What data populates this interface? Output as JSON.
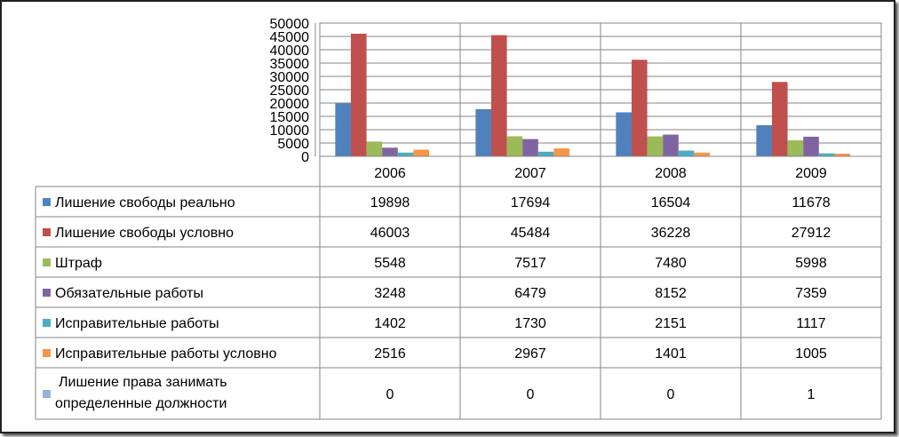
{
  "chart_data": {
    "type": "bar",
    "title": "",
    "xlabel": "",
    "ylabel": "",
    "ylim": [
      0,
      50000
    ],
    "yticks": [
      0,
      5000,
      10000,
      15000,
      20000,
      25000,
      30000,
      35000,
      40000,
      45000,
      50000
    ],
    "grid": true,
    "legend": "data-table-left",
    "categories": [
      "2006",
      "2007",
      "2008",
      "2009"
    ],
    "series": [
      {
        "name": "Лишение свободы реально",
        "color": "#4f81bd",
        "values": [
          19898,
          17694,
          16504,
          11678
        ]
      },
      {
        "name": "Лишение свободы условно",
        "color": "#c0504d",
        "values": [
          46003,
          45484,
          36228,
          27912
        ]
      },
      {
        "name": "Штраф",
        "color": "#9bbb59",
        "values": [
          5548,
          7517,
          7480,
          5998
        ]
      },
      {
        "name": "Обязательные работы",
        "color": "#8064a2",
        "values": [
          3248,
          6479,
          8152,
          7359
        ]
      },
      {
        "name": "Исправительные работы",
        "color": "#4bacc6",
        "values": [
          1402,
          1730,
          2151,
          1117
        ]
      },
      {
        "name": "Исправительные работы условно",
        "color": "#f79646",
        "values": [
          2516,
          2967,
          1401,
          1005
        ]
      },
      {
        "name_lines": [
          "Лишение права занимать",
          "определенные должности"
        ],
        "color": "#95b3d7",
        "values": [
          0,
          0,
          0,
          1
        ]
      }
    ]
  }
}
